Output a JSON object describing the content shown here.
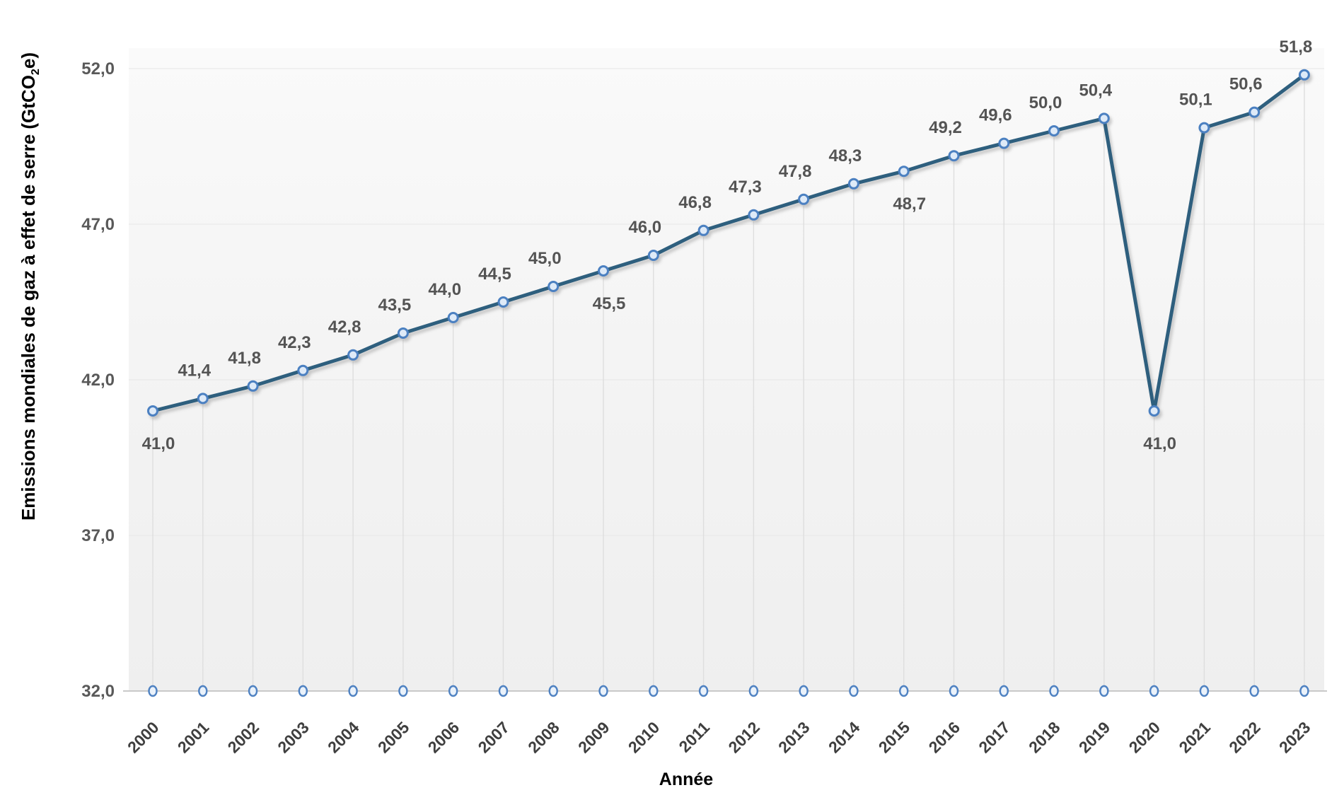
{
  "chart_data": {
    "type": "line",
    "title": "",
    "xlabel": "Année",
    "ylabel": "Emissions mondiales de gaz à effet de serre (GtCO2e)",
    "ylabel_parts": {
      "pre": "Emissions mondiales de gaz à effet de serre (GtCO",
      "sub": "2",
      "post": "e)"
    },
    "categories": [
      "2000",
      "2001",
      "2002",
      "2003",
      "2004",
      "2005",
      "2006",
      "2007",
      "2008",
      "2009",
      "2010",
      "2011",
      "2012",
      "2013",
      "2014",
      "2015",
      "2016",
      "2017",
      "2018",
      "2019",
      "2020",
      "2021",
      "2022",
      "2023"
    ],
    "values": [
      41.0,
      41.4,
      41.8,
      42.3,
      42.8,
      43.5,
      44.0,
      44.5,
      45.0,
      45.5,
      46.0,
      46.8,
      47.3,
      47.8,
      48.3,
      48.7,
      49.2,
      49.6,
      50.0,
      50.4,
      41.0,
      50.1,
      50.6,
      51.8
    ],
    "point_labels": [
      "41,0",
      "41,4",
      "41,8",
      "42,3",
      "42,8",
      "43,5",
      "44,0",
      "44,5",
      "45,0",
      "45,5",
      "46,0",
      "46,8",
      "47,3",
      "47,8",
      "48,3",
      "48,7",
      "49,2",
      "49,6",
      "50,0",
      "50,4",
      "41,0",
      "50,1",
      "50,6",
      "51,8"
    ],
    "labels_below_indices": [
      0,
      9,
      15,
      20
    ],
    "yticks": [
      32,
      37,
      42,
      47,
      52
    ],
    "ytick_labels": [
      "32,0",
      "37,0",
      "42,0",
      "47,0",
      "52,0"
    ],
    "ylim": [
      32,
      52
    ],
    "legend": "none",
    "grid": "vertical drop lines from each point, faint horizontal lines at major ticks",
    "marker": "circle",
    "baseline_markers": "circle marker on the x-axis under every year",
    "colors": {
      "line": "#2E5F7E",
      "marker_stroke": "#4C80C1",
      "marker_fill": "#DEEAF8",
      "baseline_marker_stroke": "#4F82C2",
      "baseline_marker_fill": "#EAF2FB",
      "data_label": "#545454",
      "ytick_label": "#595959",
      "xtick_label": "#3F3F3F",
      "gridline": "#DEDEDE",
      "h_gridline": "#E7E7E7",
      "axis_line": "#C9C9C9",
      "plot_bg_top": "#FAFAFA",
      "plot_bg_bottom": "#EFEFEF"
    }
  }
}
